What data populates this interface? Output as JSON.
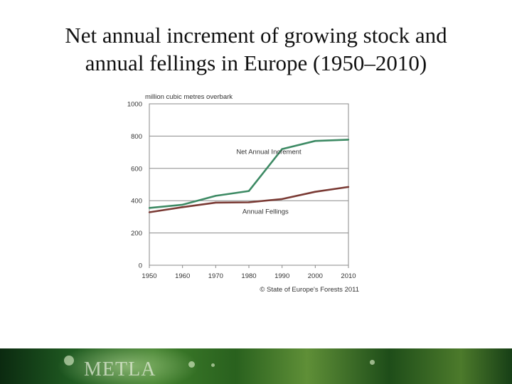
{
  "slide": {
    "title_line1": "Net annual increment of growing stock and",
    "title_line2": "annual fellings in Europe (1950–2010)"
  },
  "footer": {
    "logo_text": "METLA"
  },
  "chart_data": {
    "type": "line",
    "title": "",
    "ylabel": "million cubic metres overbark",
    "xlabel": "",
    "x": [
      1950,
      1960,
      1970,
      1980,
      1990,
      2000,
      2010
    ],
    "xlim": [
      1950,
      2010
    ],
    "ylim": [
      0,
      1000
    ],
    "yticks": [
      0,
      200,
      400,
      600,
      800,
      1000
    ],
    "xticks": [
      1950,
      1960,
      1970,
      1980,
      1990,
      2000,
      2010
    ],
    "grid": "horizontal",
    "series": [
      {
        "name": "Net Annual Increment",
        "color": "#3d8a64",
        "points": [
          [
            1950,
            355
          ],
          [
            1960,
            375
          ],
          [
            1970,
            430
          ],
          [
            1980,
            460
          ],
          [
            1990,
            720
          ],
          [
            2000,
            770
          ],
          [
            2010,
            778
          ]
        ],
        "label_at": [
          1986,
          690
        ]
      },
      {
        "name": "Annual Fellings",
        "color": "#7a3a34",
        "points": [
          [
            1950,
            328
          ],
          [
            1960,
            360
          ],
          [
            1970,
            388
          ],
          [
            1980,
            390
          ],
          [
            1990,
            410
          ],
          [
            2000,
            455
          ],
          [
            2010,
            485
          ]
        ],
        "label_at": [
          1985,
          320
        ]
      }
    ],
    "annotation": "© State of Europe's Forests 2011"
  }
}
